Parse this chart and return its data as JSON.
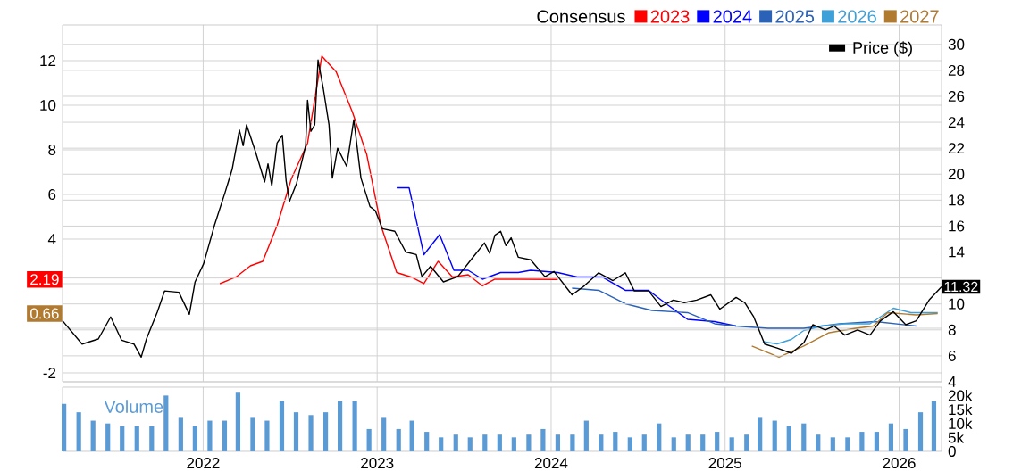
{
  "chart_data": [
    {
      "type": "line",
      "legend_title": "Consensus",
      "legend": "top right",
      "grid": true,
      "tick_labels": "y",
      "xlim": [
        "2021-03-12",
        "2026-03-31"
      ],
      "xticks": [
        "2022",
        "2023",
        "2024",
        "2025",
        "2026"
      ],
      "ylim": [
        -2.4,
        13.6
      ],
      "yticks": [
        -2,
        {
          "value": 0,
          "label": null
        },
        {
          "value": 2,
          "label": null
        },
        4,
        6,
        8,
        10,
        12
      ],
      "annotations": [
        {
          "text": "2.19",
          "y": 2.19
        },
        {
          "text": "0.66",
          "y": 0.66
        }
      ],
      "y2lim": [
        4,
        31.5
      ],
      "y2ticks": [
        4,
        6,
        8,
        10,
        {
          "value": 12,
          "label": null
        },
        14,
        16,
        18,
        20,
        22,
        24,
        26,
        28,
        30
      ],
      "series": [
        {
          "name": "2023",
          "color": "#ff0000",
          "x": [
            "2022-02-05",
            "2022-03-11",
            "2022-04-10",
            "2022-05-06",
            "2022-06-05",
            "2022-07-05",
            "2022-08-08",
            "2022-09-07",
            "2022-10-07",
            "2022-11-10",
            "2022-12-10",
            "2023-01-09",
            "2023-02-11",
            "2023-03-13",
            "2023-04-09",
            "2023-05-09",
            "2023-06-08",
            "2023-07-11",
            "2023-08-10",
            "2023-09-05",
            "2023-10-24",
            "2024-01-15"
          ],
          "values": [
            2.0,
            2.3,
            2.8,
            3.0,
            4.6,
            6.7,
            8.3,
            12.2,
            11.5,
            9.7,
            7.8,
            4.6,
            2.5,
            2.3,
            2.0,
            3.0,
            2.3,
            2.4,
            1.9,
            2.2,
            2.2,
            2.19
          ]
        },
        {
          "name": "2024",
          "color": "#0000ff",
          "x": [
            "2023-02-11",
            "2023-03-09",
            "2023-04-09",
            "2023-05-12",
            "2023-06-11",
            "2023-07-11",
            "2023-08-10",
            "2023-09-17",
            "2023-10-24",
            "2023-11-19",
            "2024-01-15",
            "2024-02-25",
            "2024-04-17",
            "2024-06-05",
            "2024-07-24",
            "2024-08-30",
            "2024-10-14",
            "2024-12-10",
            "2025-01-24"
          ],
          "values": [
            6.3,
            6.3,
            3.3,
            4.2,
            2.6,
            2.6,
            2.2,
            2.5,
            2.5,
            2.6,
            2.5,
            2.3,
            2.3,
            1.7,
            1.7,
            1.1,
            0.4,
            0.3,
            0.1
          ]
        },
        {
          "name": "2025",
          "color": "#2a62b8",
          "x": [
            "2024-02-14",
            "2024-04-10",
            "2024-06-05",
            "2024-07-31",
            "2024-10-14",
            "2024-12-10",
            "2025-01-24",
            "2025-04-01",
            "2025-06-15",
            "2025-08-29",
            "2025-11-12",
            "2026-02-06"
          ],
          "values": [
            1.8,
            1.7,
            1.1,
            0.8,
            0.7,
            0.2,
            0.1,
            0.0,
            0.0,
            0.2,
            0.3,
            0.1
          ]
        },
        {
          "name": "2026",
          "color": "#3ea0d8",
          "x": [
            "2025-03-21",
            "2025-04-20",
            "2025-05-20",
            "2025-06-15",
            "2025-07-23",
            "2025-09-09",
            "2025-11-01",
            "2025-12-20",
            "2026-01-26",
            "2026-03-23"
          ],
          "values": [
            -0.6,
            -0.7,
            -0.5,
            -0.1,
            0.1,
            0.2,
            0.2,
            0.9,
            0.7,
            0.7
          ]
        },
        {
          "name": "2027",
          "color": "#b07a30",
          "x": [
            "2025-02-26",
            "2025-04-24",
            "2025-06-15",
            "2025-08-07",
            "2025-10-02",
            "2025-11-08",
            "2025-12-08",
            "2026-02-06",
            "2026-03-23"
          ],
          "values": [
            -0.8,
            -1.3,
            -0.8,
            -0.2,
            0.0,
            0.1,
            0.7,
            0.6,
            0.66
          ]
        },
        {
          "name": "Price ($)",
          "color": "#000000",
          "axis": "y2",
          "x": [
            "2021-03-12",
            "2021-04-22",
            "2021-05-26",
            "2021-06-21",
            "2021-07-14",
            "2021-08-09",
            "2021-08-24",
            "2021-09-04",
            "2021-09-27",
            "2021-10-12",
            "2021-11-11",
            "2021-12-03",
            "2021-12-15",
            "2022-01-02",
            "2022-01-25",
            "2022-02-16",
            "2022-03-03",
            "2022-03-18",
            "2022-03-26",
            "2022-04-02",
            "2022-04-21",
            "2022-05-10",
            "2022-05-17",
            "2022-05-25",
            "2022-06-05",
            "2022-06-16",
            "2022-06-24",
            "2022-07-01",
            "2022-07-16",
            "2022-08-04",
            "2022-08-08",
            "2022-08-15",
            "2022-08-23",
            "2022-08-30",
            "2022-09-10",
            "2022-09-22",
            "2022-09-29",
            "2022-10-10",
            "2022-10-29",
            "2022-11-13",
            "2022-11-28",
            "2022-12-17",
            "2022-12-28",
            "2023-01-12",
            "2023-02-07",
            "2023-03-02",
            "2023-03-24",
            "2023-04-05",
            "2023-04-23",
            "2023-05-20",
            "2023-06-19",
            "2023-07-19",
            "2023-08-14",
            "2023-08-25",
            "2023-09-05",
            "2023-09-17",
            "2023-09-28",
            "2023-10-09",
            "2023-10-24",
            "2023-11-19",
            "2023-12-19",
            "2024-01-07",
            "2024-02-14",
            "2024-03-11",
            "2024-04-10",
            "2024-05-10",
            "2024-06-05",
            "2024-06-24",
            "2024-07-24",
            "2024-08-19",
            "2024-09-14",
            "2024-10-07",
            "2024-11-02",
            "2024-12-02",
            "2024-12-21",
            "2025-01-24",
            "2025-02-11",
            "2025-03-02",
            "2025-03-25",
            "2025-04-20",
            "2025-05-20",
            "2025-06-15",
            "2025-07-04",
            "2025-07-30",
            "2025-08-18",
            "2025-09-09",
            "2025-10-06",
            "2025-11-01",
            "2025-11-23",
            "2025-12-20",
            "2026-01-15",
            "2026-02-06",
            "2026-03-05",
            "2026-03-31"
          ],
          "values": [
            8.7,
            6.9,
            7.3,
            9.0,
            7.2,
            6.9,
            5.9,
            7.3,
            9.4,
            11.0,
            10.9,
            9.2,
            11.7,
            13.1,
            16.1,
            18.6,
            20.4,
            23.4,
            22.2,
            23.8,
            21.7,
            19.4,
            20.8,
            19.1,
            22.4,
            23.0,
            19.5,
            17.9,
            19.3,
            22.2,
            25.7,
            23.3,
            23.8,
            28.8,
            26.6,
            23.8,
            19.7,
            22.0,
            20.6,
            24.2,
            19.7,
            17.5,
            17.2,
            15.8,
            15.6,
            14.0,
            13.8,
            12.1,
            12.9,
            11.7,
            12.1,
            13.5,
            14.7,
            13.9,
            15.3,
            15.6,
            14.5,
            15.1,
            13.6,
            13.4,
            12.1,
            12.5,
            10.7,
            11.4,
            12.4,
            11.8,
            12.4,
            11.0,
            11.0,
            9.8,
            10.3,
            10.1,
            10.3,
            10.7,
            9.6,
            10.5,
            10.1,
            9.0,
            6.9,
            6.6,
            6.2,
            7.0,
            8.4,
            8.0,
            8.3,
            7.6,
            8.0,
            7.6,
            8.7,
            9.4,
            8.4,
            8.7,
            10.3,
            11.32
          ],
          "value_labels": [
            null,
            null,
            null,
            null,
            null,
            null,
            null,
            null,
            null,
            null,
            null,
            null,
            null,
            null,
            null,
            null,
            null,
            null,
            null,
            null,
            null,
            null,
            null,
            null,
            null,
            null,
            null,
            null,
            null,
            null,
            null,
            null,
            null,
            null,
            null,
            null,
            null,
            null,
            null,
            null,
            null,
            null,
            null,
            null,
            null,
            null,
            null,
            null,
            null,
            null,
            null,
            null,
            null,
            null,
            null,
            null,
            null,
            null,
            null,
            null,
            null,
            null,
            null,
            null,
            null,
            null,
            null,
            null,
            null,
            null,
            null,
            null,
            null,
            null,
            null,
            null,
            null,
            null,
            null,
            null,
            null,
            null,
            null,
            null,
            null,
            null,
            null,
            null,
            null,
            null,
            null,
            null,
            null,
            "11.32"
          ]
        }
      ]
    },
    {
      "type": "bar",
      "title": "Volume",
      "grid": "x",
      "xlim": [
        "2021-03-12",
        "2026-03-31"
      ],
      "xticks": [
        "2022",
        "2023",
        "2024",
        "2025",
        "2026"
      ],
      "ylim": [
        0,
        23000
      ],
      "yticks": [
        0,
        {
          "value": 5000,
          "label": "5k"
        },
        {
          "value": 10000,
          "label": "10k"
        },
        {
          "value": 15000,
          "label": "15k"
        },
        {
          "value": 20000,
          "label": "20k"
        }
      ],
      "series": [
        {
          "color": "#5b9bd5",
          "x": [
            "2021-03-15",
            "2021-04-15",
            "2021-05-15",
            "2021-06-15",
            "2021-07-15",
            "2021-08-15",
            "2021-09-15",
            "2021-10-15",
            "2021-11-15",
            "2021-12-15",
            "2022-01-15",
            "2022-02-15",
            "2022-03-15",
            "2022-04-15",
            "2022-05-15",
            "2022-06-15",
            "2022-07-15",
            "2022-08-15",
            "2022-09-15",
            "2022-10-15",
            "2022-11-15",
            "2022-12-15",
            "2023-01-15",
            "2023-02-15",
            "2023-03-15",
            "2023-04-15",
            "2023-05-15",
            "2023-06-15",
            "2023-07-15",
            "2023-08-15",
            "2023-09-15",
            "2023-10-15",
            "2023-11-15",
            "2023-12-15",
            "2024-01-15",
            "2024-02-15",
            "2024-03-15",
            "2024-04-15",
            "2024-05-15",
            "2024-06-15",
            "2024-07-15",
            "2024-08-15",
            "2024-09-15",
            "2024-10-15",
            "2024-11-15",
            "2024-12-15",
            "2025-01-15",
            "2025-02-15",
            "2025-03-15",
            "2025-04-15",
            "2025-05-15",
            "2025-06-15",
            "2025-07-15",
            "2025-08-15",
            "2025-09-15",
            "2025-10-15",
            "2025-11-15",
            "2025-12-15",
            "2026-01-15",
            "2026-02-15",
            "2026-03-15"
          ],
          "values": [
            17000,
            14000,
            11000,
            10000,
            9000,
            9000,
            9000,
            20000,
            12000,
            9000,
            11000,
            11000,
            21000,
            12000,
            11000,
            18000,
            14000,
            13000,
            14000,
            18000,
            18000,
            8000,
            12000,
            8000,
            11000,
            7000,
            5000,
            6000,
            5000,
            6000,
            6000,
            5000,
            6000,
            8000,
            6000,
            6000,
            11000,
            6000,
            7000,
            5000,
            6000,
            10000,
            5000,
            6000,
            6000,
            7000,
            5000,
            6000,
            12000,
            11000,
            9000,
            10000,
            6000,
            5000,
            5000,
            7000,
            7000,
            10000,
            8000,
            14000,
            18000
          ]
        }
      ]
    }
  ]
}
